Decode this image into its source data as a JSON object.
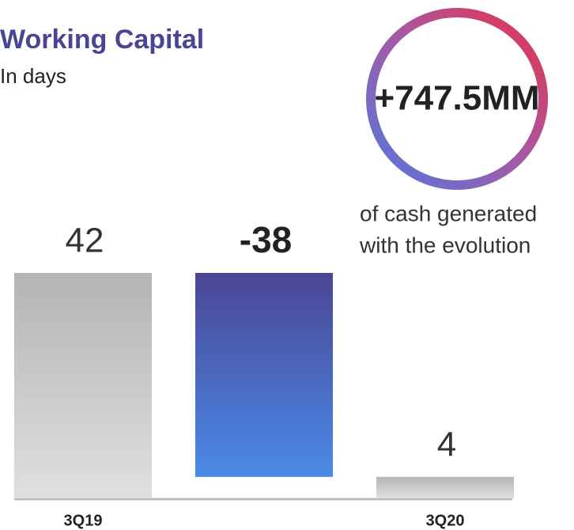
{
  "chart_data": {
    "type": "waterfall",
    "title": "Working Capital",
    "subtitle": "In days",
    "callout": "+747.5MM",
    "caption": [
      "of cash generated",
      "with the evolution"
    ],
    "categories": [
      "3Q19",
      null,
      "3Q20"
    ],
    "values": [
      42,
      -38,
      4
    ],
    "colors": [
      "#b8b8b8",
      "#4a4694",
      "#b8b8b8"
    ]
  }
}
